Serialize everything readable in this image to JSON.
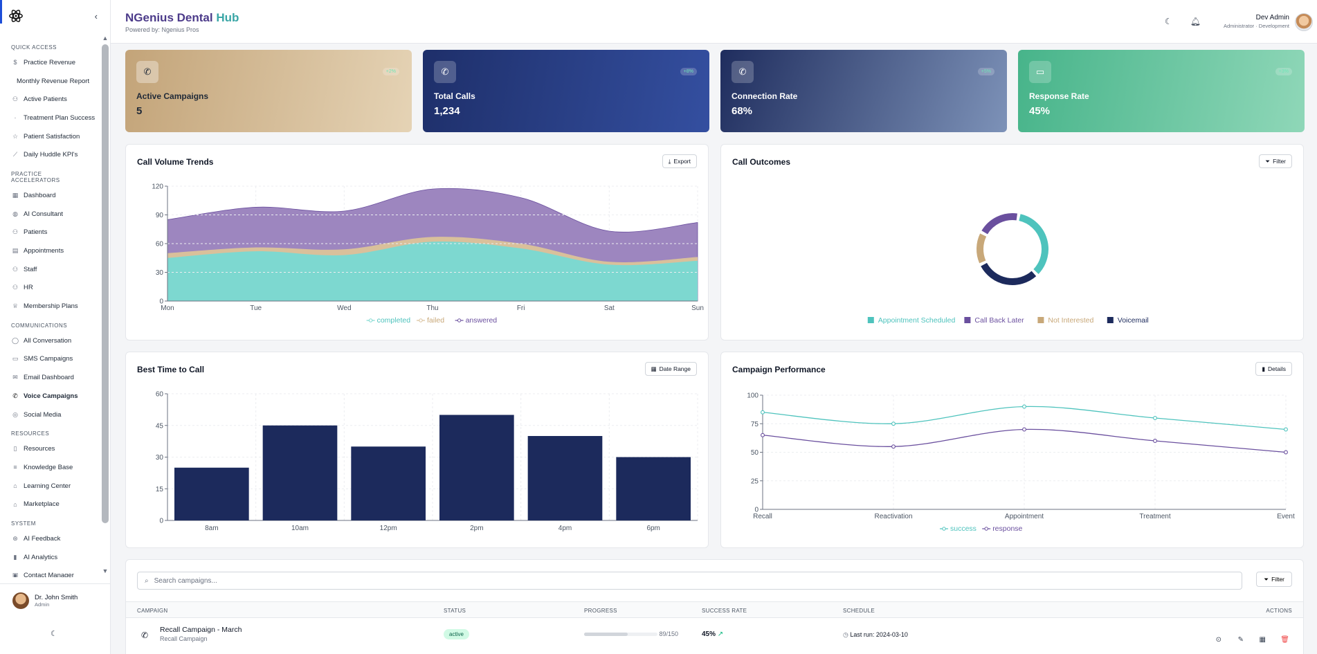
{
  "sidebar": {
    "sections": [
      {
        "title": "QUICK ACCESS",
        "items": [
          {
            "label": "Practice Revenue",
            "icon": "dollar-icon"
          },
          {
            "label": "Monthly Revenue Report",
            "icon": "",
            "sub": true
          },
          {
            "label": "Active Patients",
            "icon": "users-icon"
          },
          {
            "label": "Treatment Plan Success",
            "icon": "dot-icon"
          },
          {
            "label": "Patient Satisfaction",
            "icon": "star-icon"
          },
          {
            "label": "Daily Huddle KPI's",
            "icon": "line-chart-icon"
          }
        ]
      },
      {
        "title": "PRACTICE ACCELERATORS",
        "items": [
          {
            "label": "Dashboard",
            "icon": "grid-icon"
          },
          {
            "label": "AI Consultant",
            "icon": "bulb-icon"
          },
          {
            "label": "Patients",
            "icon": "users-icon"
          },
          {
            "label": "Appointments",
            "icon": "calendar-icon"
          },
          {
            "label": "Staff",
            "icon": "staff-icon"
          },
          {
            "label": "HR",
            "icon": "users-icon"
          },
          {
            "label": "Membership Plans",
            "icon": "crown-icon"
          }
        ]
      },
      {
        "title": "COMMUNICATIONS",
        "items": [
          {
            "label": "All Conversation",
            "icon": "chat-icon"
          },
          {
            "label": "SMS Campaigns",
            "icon": "message-icon"
          },
          {
            "label": "Email Dashboard",
            "icon": "mail-icon"
          },
          {
            "label": "Voice Campaigns",
            "icon": "phone-icon",
            "active": true
          },
          {
            "label": "Social Media",
            "icon": "globe-icon"
          }
        ]
      },
      {
        "title": "RESOURCES",
        "items": [
          {
            "label": "Resources",
            "icon": "book-icon"
          },
          {
            "label": "Knowledge Base",
            "icon": "database-icon"
          },
          {
            "label": "Learning Center",
            "icon": "graduation-icon"
          },
          {
            "label": "Marketplace",
            "icon": "store-icon"
          }
        ]
      },
      {
        "title": "SYSTEM",
        "items": [
          {
            "label": "AI Feedback",
            "icon": "feedback-icon"
          },
          {
            "label": "AI Analytics",
            "icon": "bar-chart-icon"
          },
          {
            "label": "Contact Manager",
            "icon": "contacts-icon"
          }
        ]
      }
    ],
    "user": {
      "name": "Dr. John Smith",
      "role": "Admin"
    }
  },
  "header": {
    "brand_part1": "NGenius Dental",
    "brand_part2": "Hub",
    "powered": "Powered by: Ngenius Pros",
    "user_name": "Dev Admin",
    "user_role": "Administrator · Development"
  },
  "stats": [
    {
      "label": "Active Campaigns",
      "value": "5",
      "badge": "+2%"
    },
    {
      "label": "Total Calls",
      "value": "1,234",
      "badge": "+8%"
    },
    {
      "label": "Connection Rate",
      "value": "68%",
      "badge": "+5%"
    },
    {
      "label": "Response Rate",
      "value": "45%",
      "badge": "+3%"
    }
  ],
  "panels": {
    "volume": {
      "title": "Call Volume Trends",
      "button": "Export"
    },
    "outcomes": {
      "title": "Call Outcomes",
      "button": "Filter"
    },
    "besttime": {
      "title": "Best Time to Call",
      "button": "Date Range"
    },
    "performance": {
      "title": "Campaign Performance",
      "button": "Details"
    }
  },
  "chart_data": [
    {
      "type": "area",
      "stacked": true,
      "categories": [
        "Mon",
        "Tue",
        "Wed",
        "Thu",
        "Fri",
        "Sat",
        "Sun"
      ],
      "ylim": [
        0,
        120
      ],
      "yticks": [
        0,
        30,
        60,
        90,
        120
      ],
      "series": [
        {
          "name": "completed",
          "values": [
            45,
            52,
            48,
            62,
            55,
            38,
            42
          ],
          "color": "#7dd8d0"
        },
        {
          "name": "failed",
          "values": [
            5,
            4,
            6,
            5,
            5,
            3,
            4
          ],
          "color": "#d9c09b"
        },
        {
          "name": "answered",
          "values": [
            35,
            42,
            40,
            50,
            48,
            32,
            36
          ],
          "color": "#9d86bf"
        }
      ],
      "legend": "bottom"
    },
    {
      "type": "pie",
      "donut": true,
      "series": [
        {
          "name": "Appointment Scheduled",
          "value": 35,
          "color": "#4ec3bd"
        },
        {
          "name": "Voicemail",
          "value": 30,
          "color": "#1c2a5c"
        },
        {
          "name": "Not Interested",
          "value": 15,
          "color": "#c8a879"
        },
        {
          "name": "Call Back Later",
          "value": 20,
          "color": "#6a4f9e"
        }
      ],
      "legend": "bottom"
    },
    {
      "type": "bar",
      "categories": [
        "8am",
        "10am",
        "12pm",
        "2pm",
        "4pm",
        "6pm"
      ],
      "values": [
        25,
        45,
        35,
        50,
        40,
        30
      ],
      "ylim": [
        0,
        60
      ],
      "yticks": [
        0,
        15,
        30,
        45,
        60
      ],
      "color": "#1c2a5c"
    },
    {
      "type": "line",
      "categories": [
        "Recall",
        "Reactivation",
        "Appointment",
        "Treatment",
        "Event"
      ],
      "ylim": [
        0,
        100
      ],
      "yticks": [
        0,
        25,
        50,
        75,
        100
      ],
      "series": [
        {
          "name": "success",
          "values": [
            85,
            75,
            90,
            80,
            70
          ],
          "color": "#4ec3bd"
        },
        {
          "name": "response",
          "values": [
            65,
            55,
            70,
            60,
            50
          ],
          "color": "#6a4f9e"
        }
      ],
      "legend": "bottom"
    }
  ],
  "table": {
    "search_placeholder": "Search campaigns...",
    "filter": "Filter",
    "headers": [
      "CAMPAIGN",
      "STATUS",
      "PROGRESS",
      "SUCCESS RATE",
      "SCHEDULE",
      "ACTIONS"
    ],
    "rows": [
      {
        "name": "Recall Campaign - March",
        "type": "Recall Campaign",
        "status": "active",
        "progress_text": "89/150",
        "progress": 0.593,
        "success": "45%",
        "schedule": "Last run: 2024-03-10"
      }
    ]
  }
}
